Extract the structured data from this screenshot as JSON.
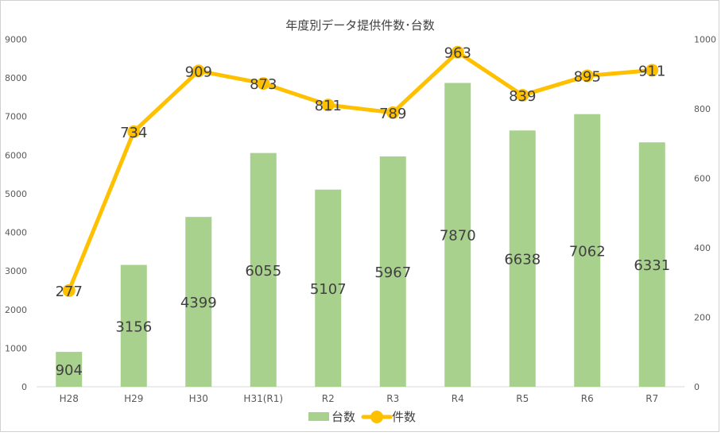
{
  "chart_data": {
    "type": "bar",
    "title": "年度別データ提供件数･台数",
    "categories": [
      "H28",
      "H29",
      "H30",
      "H31(R1)",
      "R2",
      "R3",
      "R4",
      "R5",
      "R6",
      "R7"
    ],
    "series": [
      {
        "name": "台数",
        "type": "bar",
        "axis": "left",
        "color": "#a9d18e",
        "values": [
          904,
          3156,
          4399,
          6055,
          5107,
          5967,
          7870,
          6638,
          7062,
          6331
        ]
      },
      {
        "name": "件数",
        "type": "line",
        "axis": "right",
        "color": "#ffc000",
        "values": [
          277,
          734,
          909,
          873,
          811,
          789,
          963,
          839,
          895,
          911
        ]
      }
    ],
    "y_left": {
      "min": 0,
      "max": 9000,
      "ticks": [
        "0",
        "1000",
        "2000",
        "3000",
        "4000",
        "5000",
        "6000",
        "7000",
        "8000",
        "9000"
      ]
    },
    "y_right": {
      "min": 0,
      "max": 1000,
      "ticks": [
        "0",
        "200",
        "400",
        "600",
        "800",
        "1000"
      ]
    },
    "grid": false,
    "legend_position": "bottom",
    "data_labels": true
  }
}
